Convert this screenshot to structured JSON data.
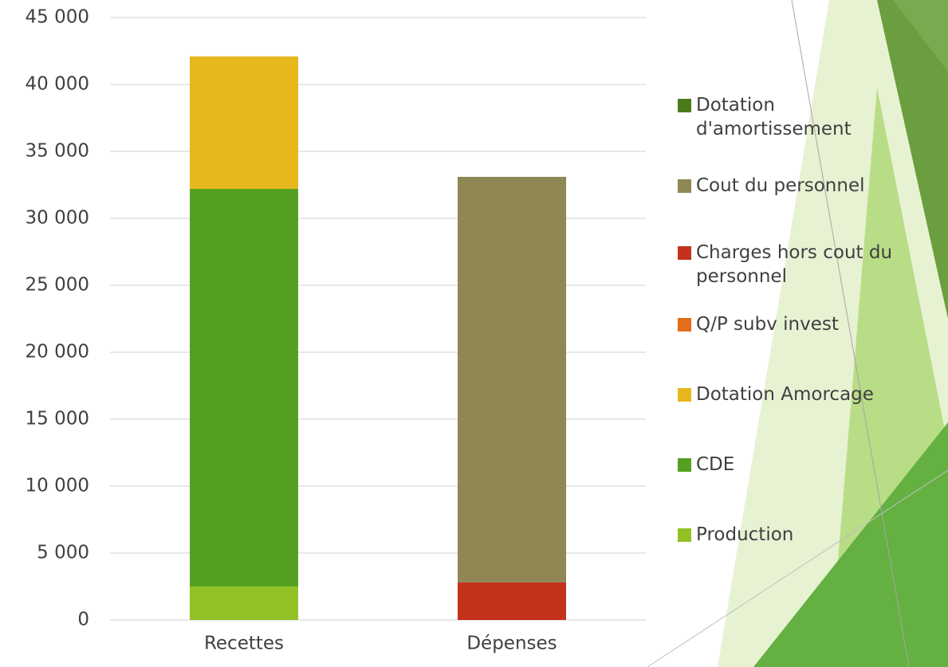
{
  "chart_data": {
    "type": "stacked_bar",
    "categories": [
      "Recettes",
      "Dépenses"
    ],
    "series": [
      {
        "name": "Production",
        "color": "#92c125",
        "values": [
          2500,
          0
        ]
      },
      {
        "name": "CDE",
        "color": "#55a021",
        "values": [
          29700,
          0
        ]
      },
      {
        "name": "Dotation Amorcage",
        "color": "#e6b81e",
        "values": [
          9900,
          0
        ]
      },
      {
        "name": "Q/P subv invest",
        "color": "#e46c1a",
        "values": [
          0,
          0
        ]
      },
      {
        "name": "Charges hors cout du personnel",
        "color": "#c4321b",
        "values": [
          0,
          2800
        ]
      },
      {
        "name": "Cout du personnel",
        "color": "#8f8754",
        "values": [
          0,
          30300
        ]
      },
      {
        "name": "Dotation d'amortissement",
        "color": "#4e7a1e",
        "values": [
          0,
          0
        ]
      }
    ],
    "ylim": [
      0,
      45000
    ],
    "yticks": [
      0,
      {
        "value": 5000,
        "label": "5 000"
      },
      {
        "value": 10000,
        "label": "10 000"
      },
      {
        "value": 15000,
        "label": "15 000"
      },
      {
        "value": 20000,
        "label": "20 000"
      },
      {
        "value": 25000,
        "label": "25 000"
      },
      {
        "value": 30000,
        "label": "30 000"
      },
      {
        "value": 35000,
        "label": "35 000"
      },
      {
        "value": 40000,
        "label": "40 000"
      },
      {
        "value": 45000,
        "label": "45 000"
      }
    ],
    "grid": true,
    "legend": "right"
  }
}
